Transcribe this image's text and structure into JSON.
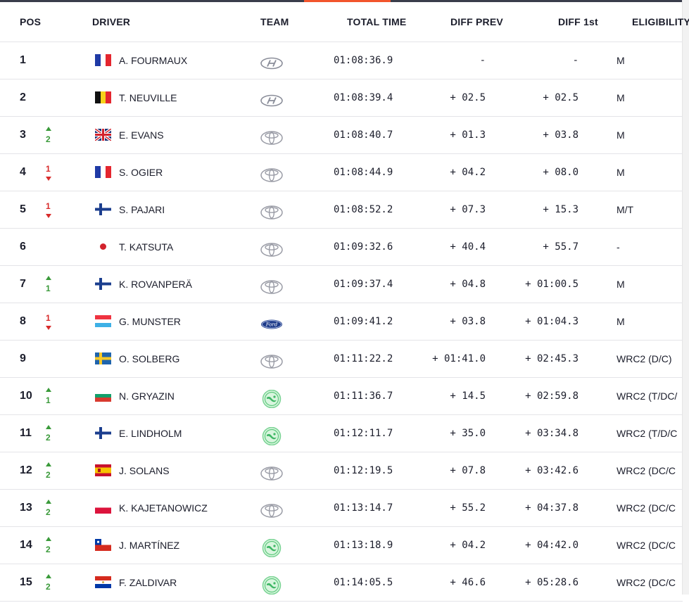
{
  "header": {
    "pos": "POS",
    "driver": "DRIVER",
    "team": "TEAM",
    "total_time": "TOTAL TIME",
    "diff_prev": "DIFF PREV",
    "diff_1st": "DIFF 1st",
    "eligibility": "ELIGIBILITY"
  },
  "colors": {
    "accent": "#f2552c",
    "up": "#3a9a3a",
    "down": "#d82b2b"
  },
  "rows": [
    {
      "pos": "1",
      "change": null,
      "change_dir": null,
      "flag": "france-flag",
      "driver": "A. FOURMAUX",
      "team": "hyundai-logo-icon",
      "total_time": "01:08:36.9",
      "diff_prev": "-",
      "diff_1st": "-",
      "eligibility": "M"
    },
    {
      "pos": "2",
      "change": null,
      "change_dir": null,
      "flag": "belgium-flag",
      "driver": "T. NEUVILLE",
      "team": "hyundai-logo-icon",
      "total_time": "01:08:39.4",
      "diff_prev": "+ 02.5",
      "diff_1st": "+ 02.5",
      "eligibility": "M"
    },
    {
      "pos": "3",
      "change": "2",
      "change_dir": "up",
      "flag": "uk-flag",
      "driver": "E. EVANS",
      "team": "toyota-logo-icon",
      "total_time": "01:08:40.7",
      "diff_prev": "+ 01.3",
      "diff_1st": "+ 03.8",
      "eligibility": "M"
    },
    {
      "pos": "4",
      "change": "1",
      "change_dir": "down",
      "flag": "france-flag",
      "driver": "S. OGIER",
      "team": "toyota-logo-icon",
      "total_time": "01:08:44.9",
      "diff_prev": "+ 04.2",
      "diff_1st": "+ 08.0",
      "eligibility": "M"
    },
    {
      "pos": "5",
      "change": "1",
      "change_dir": "down",
      "flag": "finland-flag",
      "driver": "S. PAJARI",
      "team": "toyota-logo-icon",
      "total_time": "01:08:52.2",
      "diff_prev": "+ 07.3",
      "diff_1st": "+ 15.3",
      "eligibility": "M/T"
    },
    {
      "pos": "6",
      "change": null,
      "change_dir": null,
      "flag": "japan-flag",
      "driver": "T. KATSUTA",
      "team": "toyota-logo-icon",
      "total_time": "01:09:32.6",
      "diff_prev": "+ 40.4",
      "diff_1st": "+ 55.7",
      "eligibility": "-"
    },
    {
      "pos": "7",
      "change": "1",
      "change_dir": "up",
      "flag": "finland-flag",
      "driver": "K. ROVANPERÄ",
      "team": "toyota-logo-icon",
      "total_time": "01:09:37.4",
      "diff_prev": "+ 04.8",
      "diff_1st": "+ 01:00.5",
      "eligibility": "M"
    },
    {
      "pos": "8",
      "change": "1",
      "change_dir": "down",
      "flag": "luxembourg-flag",
      "driver": "G. MUNSTER",
      "team": "ford-logo-icon",
      "total_time": "01:09:41.2",
      "diff_prev": "+ 03.8",
      "diff_1st": "+ 01:04.3",
      "eligibility": "M"
    },
    {
      "pos": "9",
      "change": null,
      "change_dir": null,
      "flag": "sweden-flag",
      "driver": "O. SOLBERG",
      "team": "toyota-logo-icon",
      "total_time": "01:11:22.2",
      "diff_prev": "+ 01:41.0",
      "diff_1st": "+ 02:45.3",
      "eligibility": "WRC2 (D/C)"
    },
    {
      "pos": "10",
      "change": "1",
      "change_dir": "up",
      "flag": "bulgaria-flag",
      "driver": "N. GRYAZIN",
      "team": "skoda-logo-icon",
      "total_time": "01:11:36.7",
      "diff_prev": "+ 14.5",
      "diff_1st": "+ 02:59.8",
      "eligibility": "WRC2 (T/DC/"
    },
    {
      "pos": "11",
      "change": "2",
      "change_dir": "up",
      "flag": "finland-flag",
      "driver": "E. LINDHOLM",
      "team": "skoda-logo-icon",
      "total_time": "01:12:11.7",
      "diff_prev": "+ 35.0",
      "diff_1st": "+ 03:34.8",
      "eligibility": "WRC2 (T/D/C"
    },
    {
      "pos": "12",
      "change": "2",
      "change_dir": "up",
      "flag": "spain-flag",
      "driver": "J. SOLANS",
      "team": "toyota-logo-icon",
      "total_time": "01:12:19.5",
      "diff_prev": "+ 07.8",
      "diff_1st": "+ 03:42.6",
      "eligibility": "WRC2 (DC/C"
    },
    {
      "pos": "13",
      "change": "2",
      "change_dir": "up",
      "flag": "poland-flag",
      "driver": "K. KAJETANOWICZ",
      "team": "toyota-logo-icon",
      "total_time": "01:13:14.7",
      "diff_prev": "+ 55.2",
      "diff_1st": "+ 04:37.8",
      "eligibility": "WRC2 (DC/C"
    },
    {
      "pos": "14",
      "change": "2",
      "change_dir": "up",
      "flag": "chile-flag",
      "driver": "J. MARTÍNEZ",
      "team": "skoda-logo-icon",
      "total_time": "01:13:18.9",
      "diff_prev": "+ 04.2",
      "diff_1st": "+ 04:42.0",
      "eligibility": "WRC2 (DC/C"
    },
    {
      "pos": "15",
      "change": "2",
      "change_dir": "up",
      "flag": "paraguay-flag",
      "driver": "F. ZALDIVAR",
      "team": "skoda-logo-icon",
      "total_time": "01:14:05.5",
      "diff_prev": "+ 46.6",
      "diff_1st": "+ 05:28.6",
      "eligibility": "WRC2 (DC/C"
    }
  ]
}
